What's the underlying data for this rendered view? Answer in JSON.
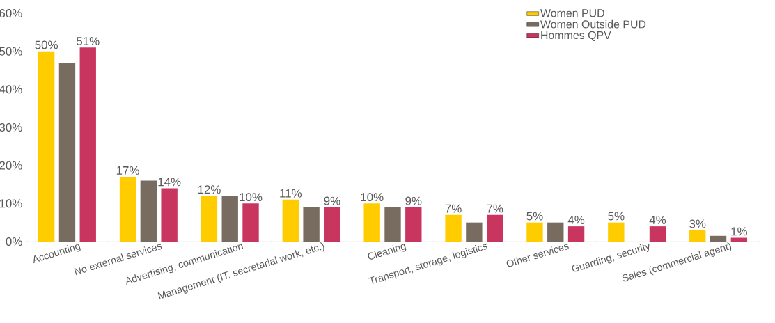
{
  "chart_data": {
    "type": "bar",
    "categories": [
      "Accounting",
      "No external services",
      "Advertising, communication",
      "Management (IT, secretarial work, etc.)",
      "Cleaning",
      "Transport, storage, logistics",
      "Other services",
      "Guarding, security",
      "Sales (commercial agent)"
    ],
    "series": [
      {
        "name": "Women PUD",
        "color": "#ffcc00",
        "values": [
          50,
          17,
          12,
          11,
          10,
          7,
          5,
          5,
          3
        ],
        "value_labels": [
          "50%",
          "17%",
          "12%",
          "11%",
          "10%",
          "7%",
          "5%",
          "5%",
          "3%"
        ]
      },
      {
        "name": "Women Outside PUD",
        "color": "#786c60",
        "values": [
          47,
          16,
          12,
          9,
          9,
          5,
          5,
          null,
          1.5
        ]
      },
      {
        "name": "Hommes QPV",
        "color": "#c8365f",
        "values": [
          51,
          14,
          10,
          9,
          9,
          7,
          4,
          4,
          1
        ],
        "value_labels": [
          "51%",
          "14%",
          "10%",
          "9%",
          "9%",
          "7%",
          "4%",
          "4%",
          "1%"
        ]
      }
    ],
    "ylim": [
      0,
      60
    ],
    "yticks": [
      {
        "value": 0,
        "label": "0%"
      },
      {
        "value": 10,
        "label": "10%"
      },
      {
        "value": 20,
        "label": "20%"
      },
      {
        "value": 30,
        "label": "30%"
      },
      {
        "value": 40,
        "label": "40%"
      },
      {
        "value": 50,
        "label": "50%"
      },
      {
        "value": 60,
        "label": "60%"
      }
    ],
    "grid": false,
    "legend": "top right"
  }
}
